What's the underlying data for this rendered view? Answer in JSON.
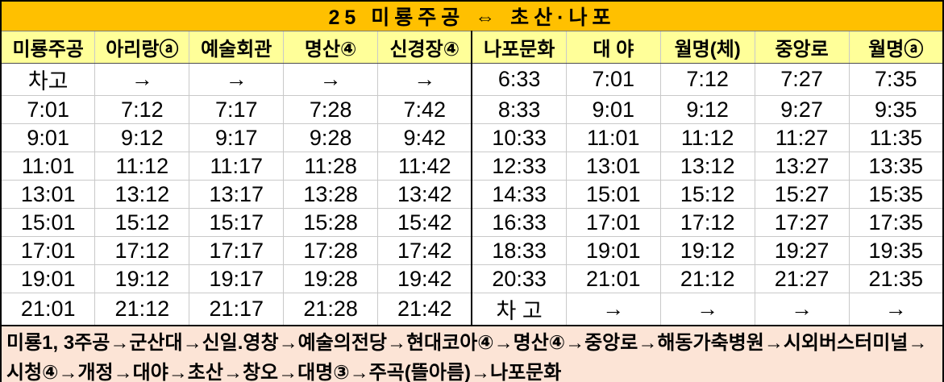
{
  "title": "25 미룡주공 ⇔ 초산·나포",
  "columns": [
    "미룡주공",
    "아리랑ⓐ",
    "예술회관",
    "명산④",
    "신경장④",
    "나포문화",
    "대 야",
    "월명(체)",
    "중앙로",
    "월명ⓐ"
  ],
  "rows": [
    [
      "차고",
      "→",
      "→",
      "→",
      "→",
      "6:33",
      "7:01",
      "7:12",
      "7:27",
      "7:35"
    ],
    [
      "7:01",
      "7:12",
      "7:17",
      "7:28",
      "7:42",
      "8:33",
      "9:01",
      "9:12",
      "9:27",
      "9:35"
    ],
    [
      "9:01",
      "9:12",
      "9:17",
      "9:28",
      "9:42",
      "10:33",
      "11:01",
      "11:12",
      "11:27",
      "11:35"
    ],
    [
      "11:01",
      "11:12",
      "11:17",
      "11:28",
      "11:42",
      "12:33",
      "13:01",
      "13:12",
      "13:27",
      "13:35"
    ],
    [
      "13:01",
      "13:12",
      "13:17",
      "13:28",
      "13:42",
      "14:33",
      "15:01",
      "15:12",
      "15:27",
      "15:35"
    ],
    [
      "15:01",
      "15:12",
      "15:17",
      "15:28",
      "15:42",
      "16:33",
      "17:01",
      "17:12",
      "17:27",
      "17:35"
    ],
    [
      "17:01",
      "17:12",
      "17:17",
      "17:28",
      "17:42",
      "18:33",
      "19:01",
      "19:12",
      "19:27",
      "19:35"
    ],
    [
      "19:01",
      "19:12",
      "19:17",
      "19:28",
      "19:42",
      "20:33",
      "21:01",
      "21:12",
      "21:27",
      "21:35"
    ],
    [
      "21:01",
      "21:12",
      "21:17",
      "21:28",
      "21:42",
      "차 고",
      "→",
      "→",
      "→",
      "→"
    ]
  ],
  "route_description": "미룡1, 3주공→군산대→신일.영창→예술의전당→현대코아④→명산④→중앙로→해동가축병원→시외버스터미널→시청④→개정→대야→초산→창오→대명③→주곡(뜰아름)→나포문화",
  "colors": {
    "title_bg": "#FFC000",
    "header_bg": "#FFFF99",
    "footer_bg": "#FCE4D6",
    "grid_line": "#C9C9C9",
    "frame_line": "#000000"
  }
}
